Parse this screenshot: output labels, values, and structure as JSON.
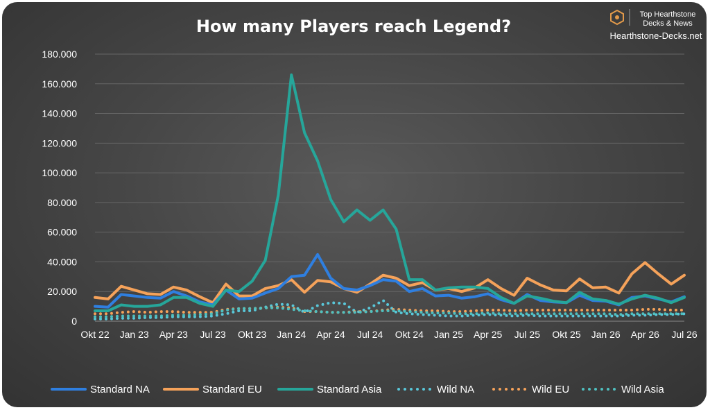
{
  "brand": {
    "line1": "Top Hearthstone",
    "line2": "Decks & News",
    "site": "Hearthstone-Decks.net"
  },
  "chart_data": {
    "type": "line",
    "title": "How many Players reach Legend?",
    "xlabel": "",
    "ylabel": "",
    "ylim": [
      0,
      180000
    ],
    "yticks": [
      0,
      20000,
      40000,
      60000,
      80000,
      100000,
      120000,
      140000,
      160000,
      180000
    ],
    "ytick_labels": [
      "0",
      "20.000",
      "40.000",
      "60.000",
      "80.000",
      "100.000",
      "120.000",
      "140.000",
      "160.000",
      "180.000"
    ],
    "x": [
      "Okt 22",
      "Nov 22",
      "Dez 22",
      "Jan 23",
      "Feb 23",
      "Mär 23",
      "Apr 23",
      "Mai 23",
      "Jun 23",
      "Jul 23",
      "Aug 23",
      "Sep 23",
      "Okt 23",
      "Nov 23",
      "Dez 23",
      "Jan 24",
      "Feb 24",
      "Mär 24",
      "Apr 24",
      "Mai 24",
      "Jun 24",
      "Jul 24",
      "Aug 24",
      "Sep 24",
      "Okt 24",
      "Nov 24",
      "Dez 24",
      "Jan 25",
      "Feb 25",
      "Mär 25",
      "Apr 25",
      "Mai 25",
      "Jun 25",
      "Jul 25",
      "Aug 25",
      "Sep 25",
      "Okt 25",
      "Nov 25",
      "Dez 25",
      "Jan 26",
      "Feb 26",
      "Mär 26",
      "Apr 26",
      "Mai 26",
      "Jun 26",
      "Jul 26"
    ],
    "x_tick_labels": [
      "Okt 22",
      "Jan 23",
      "Apr 23",
      "Jul 23",
      "Okt 23",
      "Jan 24",
      "Apr 24",
      "Jul 24",
      "Okt 24",
      "Jan 25",
      "Apr 25",
      "Jul 25",
      "Okt 25",
      "Jan 26",
      "Apr 26",
      "Jul 26"
    ],
    "grid": true,
    "legend_position": "bottom",
    "series": [
      {
        "name": "Standard NA",
        "style": "solid",
        "color": "#2f7fe0",
        "values": [
          10000,
          9500,
          18000,
          17000,
          16000,
          15500,
          20000,
          17000,
          13000,
          11000,
          21000,
          15000,
          15500,
          19000,
          22000,
          30000,
          31000,
          45000,
          29000,
          22000,
          21000,
          24000,
          28000,
          27000,
          20000,
          22000,
          17000,
          17500,
          15500,
          16500,
          18500,
          14500,
          12000,
          18000,
          14000,
          13000,
          12500,
          17500,
          14000,
          13500,
          11000,
          16000,
          17000,
          15000,
          13000,
          16500
        ]
      },
      {
        "name": "Standard EU",
        "style": "solid",
        "color": "#f5a25a",
        "values": [
          16000,
          15000,
          23500,
          21000,
          18500,
          18000,
          23000,
          21000,
          16500,
          12500,
          25000,
          17000,
          17000,
          22000,
          24000,
          28000,
          19500,
          27500,
          26500,
          22000,
          19500,
          25000,
          31000,
          29000,
          24000,
          26000,
          21000,
          22000,
          20000,
          22500,
          28000,
          22000,
          17500,
          29000,
          24500,
          21000,
          20500,
          28500,
          22500,
          23000,
          19000,
          32000,
          39500,
          32000,
          25000,
          31000
        ]
      },
      {
        "name": "Standard Asia",
        "style": "solid",
        "color": "#26a69a",
        "values": [
          7000,
          7000,
          11000,
          10000,
          10000,
          11000,
          16000,
          16000,
          12000,
          10000,
          21000,
          20000,
          27000,
          41000,
          85000,
          166000,
          127000,
          108000,
          82000,
          67000,
          75000,
          68000,
          75000,
          62000,
          28000,
          28000,
          21000,
          22500,
          23000,
          23000,
          22000,
          16000,
          12000,
          17000,
          15500,
          13500,
          12500,
          19500,
          15000,
          14000,
          11500,
          15000,
          17500,
          15500,
          12500,
          16000
        ]
      },
      {
        "name": "Wild NA",
        "style": "dotted",
        "color": "#59c7d9",
        "values": [
          1500,
          1500,
          2000,
          2000,
          2500,
          2500,
          3000,
          3000,
          3000,
          3500,
          5000,
          7000,
          7000,
          9500,
          11500,
          11000,
          6000,
          10500,
          12500,
          12000,
          6000,
          9000,
          14000,
          6000,
          5000,
          4500,
          4000,
          3500,
          3500,
          4000,
          4500,
          4000,
          3500,
          4000,
          3500,
          3500,
          3500,
          3500,
          3500,
          3500,
          3500,
          4000,
          4000,
          4500,
          4500,
          5000
        ]
      },
      {
        "name": "Wild EU",
        "style": "dotted",
        "color": "#f5a25a",
        "values": [
          5000,
          5000,
          6000,
          6500,
          6000,
          6500,
          6500,
          6000,
          6000,
          6000,
          8000,
          8500,
          8500,
          9000,
          9500,
          9000,
          6500,
          6500,
          6000,
          6000,
          6500,
          6500,
          7500,
          8000,
          7500,
          7000,
          7000,
          6500,
          6500,
          7000,
          7500,
          7500,
          7000,
          7500,
          7500,
          7500,
          7500,
          7500,
          7500,
          7500,
          7500,
          7500,
          8000,
          8000,
          7500,
          7500
        ]
      },
      {
        "name": "Wild Asia",
        "style": "dotted",
        "color": "#4fc0c0",
        "values": [
          3000,
          3000,
          3500,
          3500,
          3500,
          3500,
          4000,
          4000,
          4500,
          5000,
          7500,
          8500,
          8500,
          9000,
          9000,
          8000,
          7000,
          6500,
          6000,
          6000,
          6000,
          6500,
          7000,
          7000,
          6500,
          6000,
          5500,
          5500,
          5000,
          5000,
          5500,
          5000,
          5000,
          5000,
          5000,
          5000,
          5000,
          5000,
          5000,
          5000,
          4500,
          5000,
          5000,
          5000,
          5000,
          5000
        ]
      }
    ]
  }
}
